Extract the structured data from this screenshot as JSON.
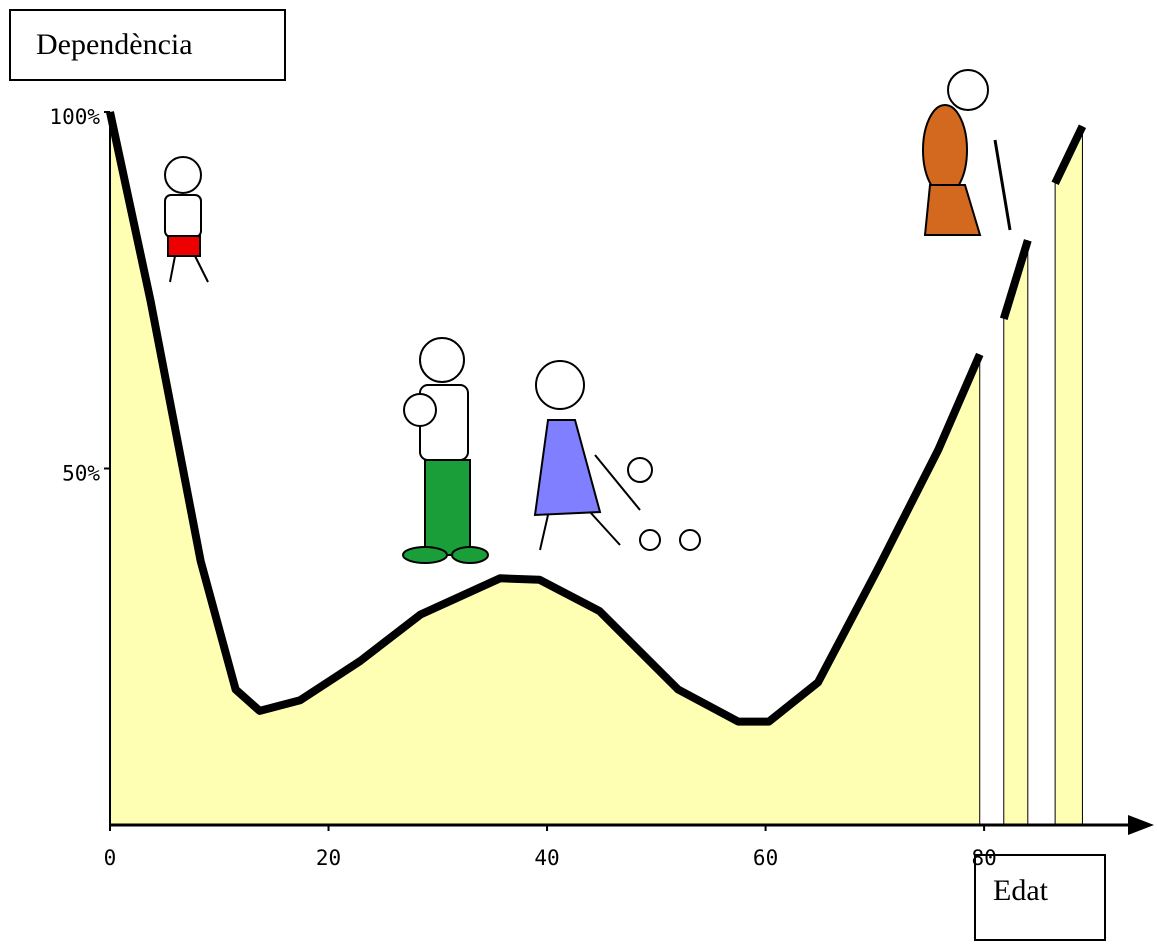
{
  "chart_data": {
    "type": "area",
    "title": "Dependència",
    "x_label": "Edat",
    "x": [
      0,
      3.7,
      8.3,
      11.5,
      13.7,
      17.4,
      22.9,
      28.4,
      35.7,
      39.3,
      44.8,
      52,
      57.5,
      60.3,
      64.8,
      70.3,
      75.8,
      79.6,
      80.8,
      81.8,
      84,
      85.2,
      86.5,
      89
    ],
    "series": [
      {
        "name": "Dependència",
        "color": "#ffffb4",
        "values": [
          100,
          73.6,
          37,
          19,
          16,
          17.5,
          23,
          29.5,
          34.6,
          34.4,
          30,
          19,
          14.5,
          14.5,
          20,
          36,
          52.6,
          66,
          null,
          71,
          82,
          null,
          90,
          98
        ]
      }
    ],
    "xlim": [
      0,
      95
    ],
    "ylim": [
      0,
      100
    ],
    "xticks": [
      0,
      20,
      40,
      60,
      80
    ],
    "yticks": [
      {
        "value": 50,
        "label": "50%"
      },
      {
        "value": 100,
        "label": "100%"
      }
    ]
  }
}
